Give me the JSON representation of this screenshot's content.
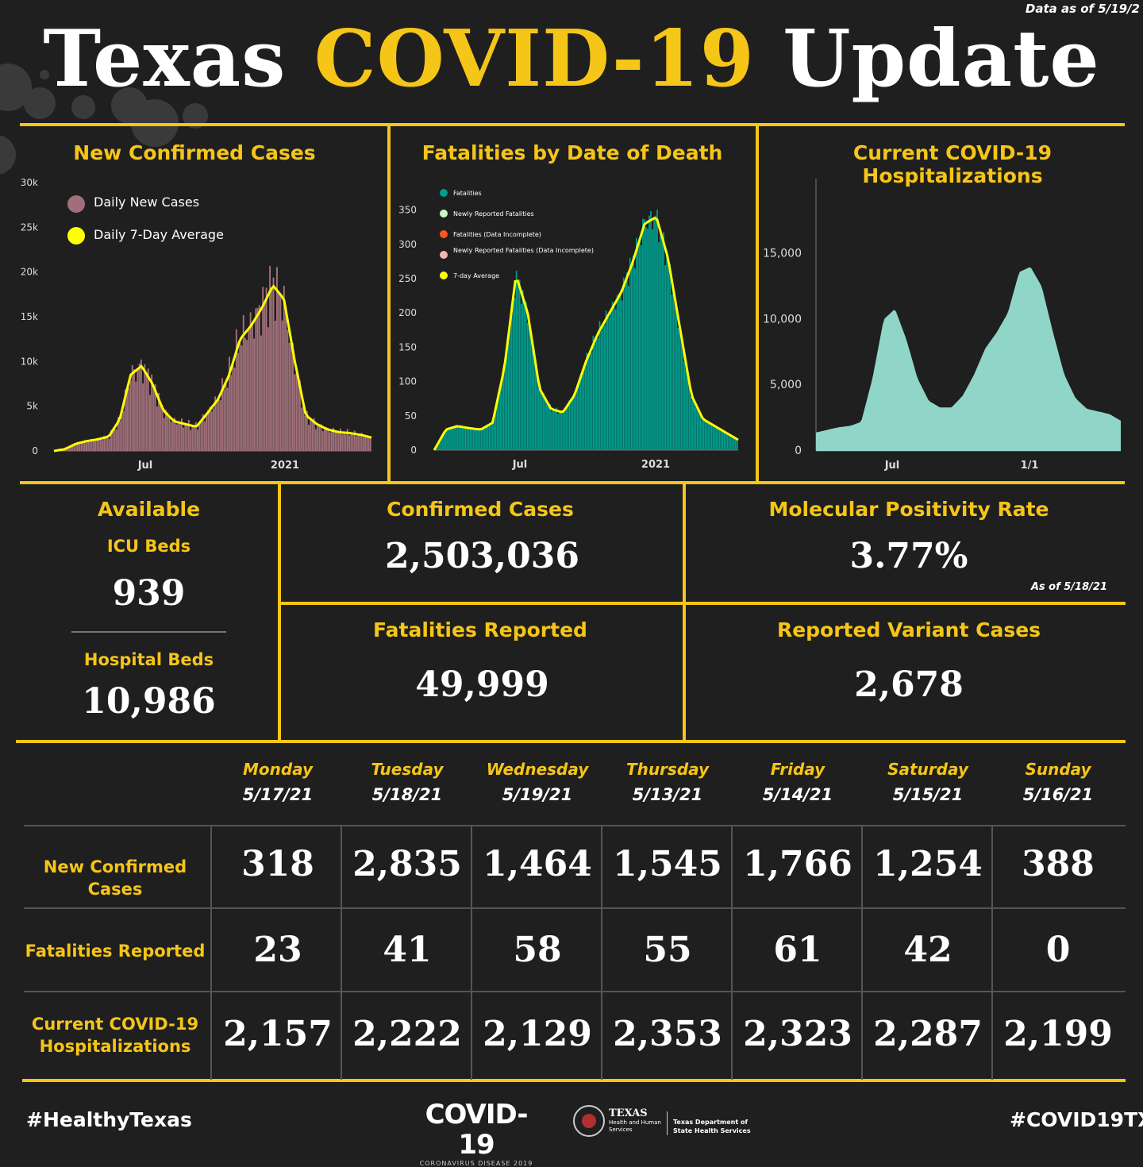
{
  "header": {
    "title_part1": "Texas",
    "title_part2": "COVID-19",
    "title_part3": "Update",
    "data_as_of": "Data as of 5/19/2"
  },
  "colors": {
    "accent": "#f5c518",
    "background": "#1f1f1f",
    "cases_bar": "#a0707a",
    "fatal_bar": "#009e8e",
    "hosp_area": "#8fd6c9",
    "avg_line": "#ffff00"
  },
  "chart_data": [
    {
      "type": "bar",
      "title": "New Confirmed Cases",
      "legend": [
        "Daily New  Cases",
        "Daily 7-Day Average"
      ],
      "yticks": [
        "0",
        "5k",
        "10k",
        "15k",
        "20k",
        "25k",
        "30k"
      ],
      "xticks": [
        "Jul",
        "2021"
      ],
      "ylim": [
        0,
        30000
      ],
      "series": [
        {
          "name": "Daily 7-Day Average",
          "values": [
            0,
            200,
            800,
            1100,
            1300,
            1600,
            3500,
            8500,
            9500,
            7500,
            4500,
            3300,
            3000,
            2700,
            4200,
            5800,
            8500,
            12500,
            14000,
            16000,
            18500,
            17000,
            10000,
            4000,
            3000,
            2400,
            2100,
            2000,
            1800,
            1500
          ]
        }
      ]
    },
    {
      "type": "bar",
      "title": "Fatalities by Date of Death",
      "legend": [
        "Fatalities",
        "Newly Reported Fatalities",
        "Fatalities (Data Incomplete)",
        "Newly Reported Fatalities (Data Incomplete)",
        "7-day Average"
      ],
      "yticks": [
        "0",
        "50",
        "100",
        "150",
        "200",
        "250",
        "300",
        "350"
      ],
      "xticks": [
        "Jul",
        "2021"
      ],
      "ylim": [
        0,
        390
      ],
      "series": [
        {
          "name": "7-day Average",
          "values": [
            0,
            30,
            35,
            32,
            30,
            40,
            120,
            255,
            200,
            90,
            60,
            55,
            80,
            130,
            170,
            200,
            230,
            275,
            330,
            340,
            280,
            180,
            80,
            45,
            35,
            25,
            15
          ]
        }
      ]
    },
    {
      "type": "area",
      "title": "Current COVID-19 Hospitalizations",
      "yticks": [
        "0",
        "5,000",
        "10,000",
        "15,000"
      ],
      "xticks": [
        "Jul",
        "1/1"
      ],
      "ylim": [
        0,
        19500
      ],
      "series": [
        {
          "name": "Hospitalizations",
          "values": [
            1400,
            1600,
            1800,
            1900,
            2200,
            5500,
            10000,
            10800,
            8500,
            5500,
            3800,
            3300,
            3300,
            4200,
            5800,
            7800,
            9000,
            10500,
            13600,
            14000,
            12500,
            9000,
            5800,
            4000,
            3200,
            3000,
            2800,
            2300
          ]
        }
      ]
    }
  ],
  "stats": {
    "available_label": "Available",
    "icu_label": "ICU Beds",
    "icu_value": "939",
    "hospital_label": "Hospital Beds",
    "hospital_value": "10,986",
    "confirmed_label": "Confirmed Cases",
    "confirmed_value": "2,503,036",
    "positivity_label": "Molecular Positivity Rate",
    "positivity_value": "3.77%",
    "positivity_asof": "As of 5/18/21",
    "fatalities_label": "Fatalities Reported",
    "fatalities_value": "49,999",
    "variant_label": "Reported Variant Cases",
    "variant_value": "2,678"
  },
  "table": {
    "days": [
      {
        "day": "Monday",
        "date": "5/17/21"
      },
      {
        "day": "Tuesday",
        "date": "5/18/21"
      },
      {
        "day": "Wednesday",
        "date": "5/19/21"
      },
      {
        "day": "Thursday",
        "date": "5/13/21"
      },
      {
        "day": "Friday",
        "date": "5/14/21"
      },
      {
        "day": "Saturday",
        "date": "5/15/21"
      },
      {
        "day": "Sunday",
        "date": "5/16/21"
      }
    ],
    "rows": [
      {
        "label": "New Confirmed Cases",
        "values": [
          "318",
          "2,835",
          "1,464",
          "1,545",
          "1,766",
          "1,254",
          "388"
        ]
      },
      {
        "label": "Fatalities Reported",
        "values": [
          "23",
          "41",
          "58",
          "55",
          "61",
          "42",
          "0"
        ]
      },
      {
        "label": "Current COVID-19 Hospitalizations",
        "values": [
          "2,157",
          "2,222",
          "2,129",
          "2,353",
          "2,323",
          "2,287",
          "2,199"
        ]
      }
    ]
  },
  "footer": {
    "hashtag_left": "#HealthyTexas",
    "logo_main": "COVID-19",
    "logo_sub": "CORONAVIRUS DISEASE 2019",
    "hhs_name": "TEXAS",
    "hhs_sub": "Health and Human Services",
    "dshs_name": "Texas Department of State Health Services",
    "hashtag_right": "#COVID19TX"
  }
}
